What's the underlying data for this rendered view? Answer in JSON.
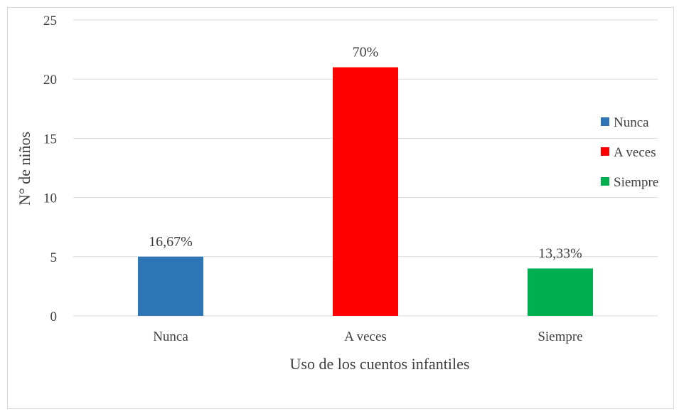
{
  "chart_data": {
    "type": "bar",
    "title": "",
    "xlabel": "Uso de los cuentos infantiles",
    "ylabel": "N° de niños",
    "categories": [
      "Nunca",
      "A veces",
      "Siempre"
    ],
    "values": [
      5,
      21,
      4
    ],
    "data_labels": [
      "16,67%",
      "70%",
      "13,33%"
    ],
    "colors": [
      "#2e75b6",
      "#ff0000",
      "#00b050"
    ],
    "ylim": [
      0,
      25
    ],
    "yticks": [
      0,
      5,
      10,
      15,
      20,
      25
    ],
    "grid": true,
    "legend": {
      "placement": "right",
      "entries": [
        "Nunca",
        "A veces",
        "Siempre"
      ]
    }
  }
}
